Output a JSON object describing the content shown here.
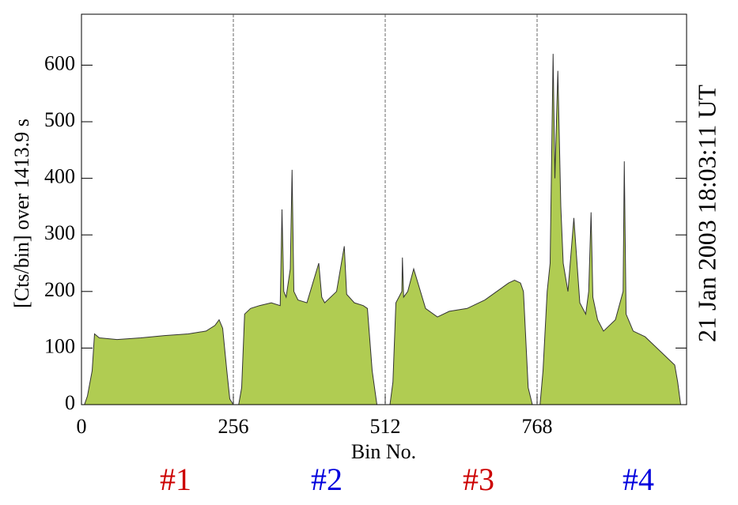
{
  "chart_data": {
    "type": "area",
    "ylabel": "[Cts/bin] over  1413.9 s",
    "xlabel": "Bin No.",
    "right_label": "21 Jan 2003  18:03:11  UT",
    "right_label_color": "#cc0000",
    "annotations": [
      {
        "text": "#1",
        "color": "#cc0000"
      },
      {
        "text": "#2",
        "color": "#0000dd"
      },
      {
        "text": "#3",
        "color": "#cc0000"
      },
      {
        "text": "#4",
        "color": "#0000dd"
      }
    ],
    "color": "#b0cc52",
    "line_color": "#333333",
    "grid": true,
    "xlim": [
      0,
      1020
    ],
    "xticks": [
      0,
      256,
      512,
      768
    ],
    "ylim": [
      0,
      690
    ],
    "yticks": [
      0,
      100,
      200,
      300,
      400,
      500,
      600
    ],
    "x": [
      0,
      5,
      10,
      18,
      22,
      30,
      60,
      100,
      140,
      180,
      210,
      225,
      232,
      238,
      245,
      250,
      256,
      265,
      270,
      275,
      285,
      300,
      320,
      335,
      338,
      341,
      345,
      352,
      355,
      358,
      365,
      380,
      400,
      405,
      410,
      430,
      443,
      447,
      460,
      475,
      482,
      490,
      498,
      512,
      520,
      525,
      530,
      540,
      541,
      543,
      550,
      560,
      580,
      600,
      620,
      650,
      680,
      700,
      720,
      730,
      740,
      745,
      753,
      760,
      768,
      773,
      778,
      785,
      790,
      795,
      798,
      803,
      808,
      812,
      820,
      830,
      840,
      850,
      855,
      859,
      862,
      870,
      880,
      900,
      913,
      915,
      918,
      930,
      950,
      970,
      990,
      1000,
      1005,
      1010,
      1020
    ],
    "values": [
      0,
      0,
      15,
      60,
      125,
      118,
      115,
      118,
      122,
      125,
      130,
      140,
      150,
      135,
      60,
      10,
      0,
      0,
      30,
      160,
      170,
      175,
      180,
      175,
      345,
      200,
      190,
      240,
      415,
      200,
      185,
      180,
      250,
      190,
      180,
      200,
      280,
      195,
      180,
      175,
      170,
      60,
      0,
      0,
      0,
      40,
      180,
      200,
      260,
      190,
      200,
      240,
      170,
      155,
      165,
      170,
      185,
      200,
      215,
      220,
      215,
      200,
      30,
      0,
      0,
      0,
      60,
      200,
      250,
      620,
      400,
      590,
      350,
      250,
      200,
      330,
      180,
      160,
      200,
      340,
      190,
      150,
      130,
      150,
      200,
      430,
      160,
      130,
      120,
      100,
      80,
      70,
      40,
      0,
      0
    ]
  }
}
